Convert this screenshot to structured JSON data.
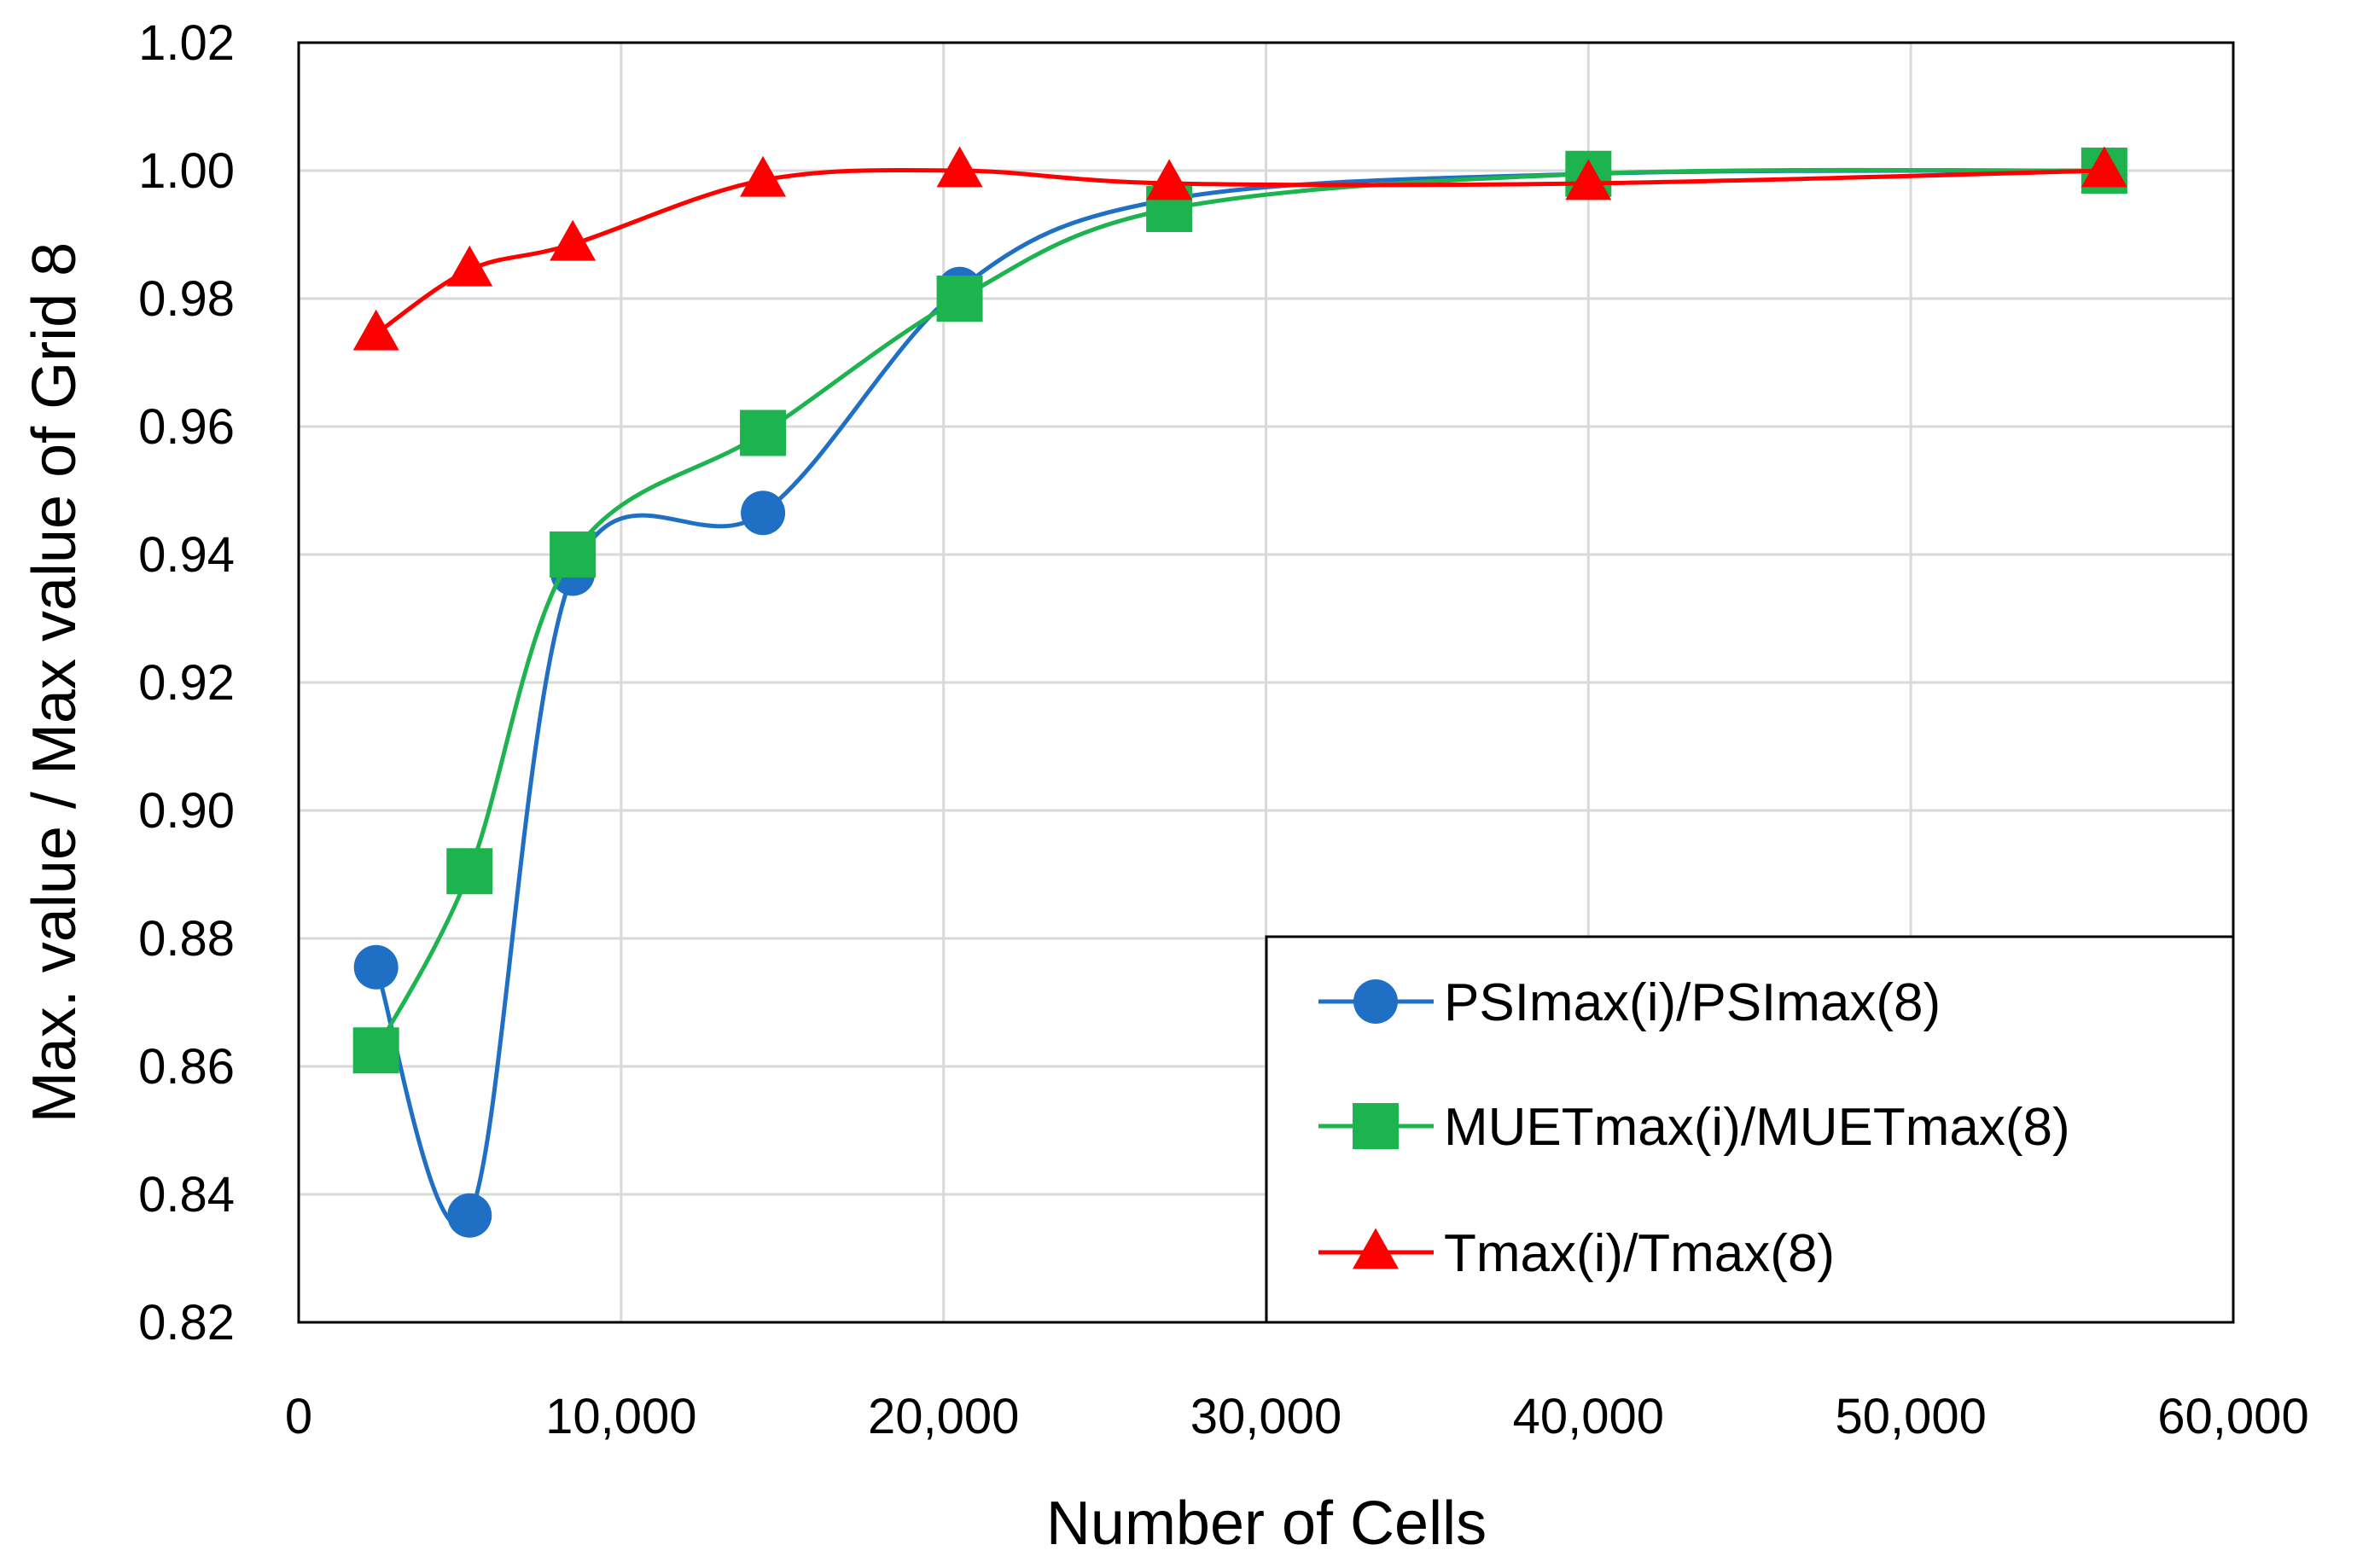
{
  "chart_data": {
    "type": "line",
    "title": "",
    "xlabel": "Number of Cells",
    "ylabel": "Max. value / Max value of Grid 8",
    "xlim": [
      0,
      60000
    ],
    "ylim": [
      0.82,
      1.02
    ],
    "xticks": [
      0,
      10000,
      20000,
      30000,
      40000,
      50000,
      60000
    ],
    "xtick_labels": [
      "0",
      "10,000",
      "20,000",
      "30,000",
      "40,000",
      "50,000",
      "60,000"
    ],
    "yticks": [
      0.82,
      0.84,
      0.86,
      0.88,
      0.9,
      0.92,
      0.94,
      0.96,
      0.98,
      1.0,
      1.02
    ],
    "ytick_labels": [
      "0.82",
      "0.84",
      "0.86",
      "0.88",
      "0.90",
      "0.92",
      "0.94",
      "0.96",
      "0.98",
      "1.00",
      "1.02"
    ],
    "grid": true,
    "legend_position": "bottom-right",
    "smooth": true,
    "series": [
      {
        "name": "PSImax(i)/PSImax(8)",
        "color": "#1f6fc5",
        "marker": "circle",
        "x": [
          2400,
          5300,
          8500,
          14400,
          20500,
          27000,
          40000,
          56000
        ],
        "y": [
          0.8755,
          0.8367,
          0.937,
          0.9465,
          0.9815,
          0.9955,
          0.9995,
          1.0
        ]
      },
      {
        "name": "MUETmax(i)/MUETmax(8)",
        "color": "#1db34f",
        "marker": "square",
        "x": [
          2400,
          5300,
          8500,
          14400,
          20500,
          27000,
          40000,
          56000
        ],
        "y": [
          0.8625,
          0.8905,
          0.94,
          0.959,
          0.98,
          0.994,
          0.9995,
          1.0
        ]
      },
      {
        "name": "Tmax(i)/Tmax(8)",
        "color": "#ff0000",
        "marker": "triangle",
        "x": [
          2400,
          5300,
          8500,
          14400,
          20500,
          27000,
          40000,
          56000
        ],
        "y": [
          0.9745,
          0.9845,
          0.9885,
          0.9985,
          1.0,
          0.998,
          0.998,
          1.0
        ]
      }
    ]
  }
}
